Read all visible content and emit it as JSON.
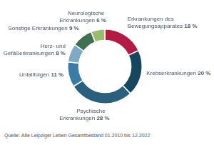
{
  "chart_data": {
    "type": "doughnut",
    "categories": [
      "Erkrankungen des Bewegungsapparates",
      "Krebserkrankungen",
      "Psychische Erkrankungen",
      "Unfallfolgen",
      "Herz- und Gefäßerkrankungen",
      "Sonstige Erkrankungen",
      "Neurologische Erkrankungen"
    ],
    "values": [
      18,
      20,
      28,
      11,
      8,
      9,
      6
    ],
    "value_labels": [
      "18 %",
      "20 %",
      "28 %",
      "11 %",
      "8 %",
      "9 %",
      "6 %"
    ],
    "colors": [
      "#b31b45",
      "#15475f",
      "#2b5f7e",
      "#3b7ca6",
      "#7eaac6",
      "#3f7050",
      "#9abd6d"
    ],
    "data_labels": true,
    "annotations": [
      "Quelle: Alte Leipziger Leben Gesamtbestand 01.2010 bis 12.2022"
    ]
  }
}
